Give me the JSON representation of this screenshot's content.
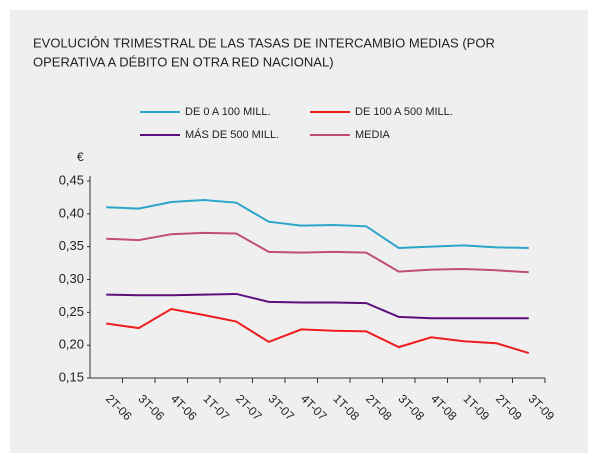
{
  "chart_data": {
    "type": "line",
    "title": "EVOLUCIÓN TRIMESTRAL DE LAS TASAS DE INTERCAMBIO MEDIAS (POR",
    "subtitle": "OPERATIVA A DÉBITO EN OTRA RED NACIONAL)",
    "y_label": "€",
    "categories": [
      "2T-06",
      "3T-06",
      "4T-06",
      "1T-07",
      "2T-07",
      "3T-07",
      "4T-07",
      "1T-08",
      "2T-08",
      "3T-08",
      "4T-08",
      "1T-09",
      "2T-09",
      "3T-09"
    ],
    "series": [
      {
        "name": "DE 0 A 100 MILL.",
        "color": "#2aa6c8",
        "values": [
          0.41,
          0.408,
          0.418,
          0.421,
          0.417,
          0.388,
          0.382,
          0.383,
          0.381,
          0.348,
          0.35,
          0.352,
          0.349,
          0.348
        ]
      },
      {
        "name": "DE 100 A 500 MILL.",
        "color": "#ee1c1c",
        "values": [
          0.233,
          0.226,
          0.255,
          0.246,
          0.236,
          0.205,
          0.224,
          0.222,
          0.221,
          0.197,
          0.212,
          0.206,
          0.203,
          0.188
        ]
      },
      {
        "name": "MÁS DE 500 MILL.",
        "color": "#5e0e7a",
        "values": [
          0.277,
          0.276,
          0.276,
          0.277,
          0.278,
          0.266,
          0.265,
          0.265,
          0.264,
          0.243,
          0.241,
          0.241,
          0.241,
          0.241
        ]
      },
      {
        "name": "MEDIA",
        "color": "#c0506e",
        "values": [
          0.362,
          0.36,
          0.369,
          0.371,
          0.37,
          0.342,
          0.341,
          0.342,
          0.341,
          0.312,
          0.315,
          0.316,
          0.314,
          0.311
        ]
      }
    ],
    "ylim": [
      0.15,
      0.45
    ],
    "yticks": [
      {
        "value": 0.15,
        "label": "0,15"
      },
      {
        "value": 0.2,
        "label": "0,20"
      },
      {
        "value": 0.25,
        "label": "0,25"
      },
      {
        "value": 0.3,
        "label": "0,30"
      },
      {
        "value": 0.35,
        "label": "0,35"
      },
      {
        "value": 0.4,
        "label": "0,40"
      },
      {
        "value": 0.45,
        "label": "0,45"
      }
    ],
    "grid": false
  }
}
